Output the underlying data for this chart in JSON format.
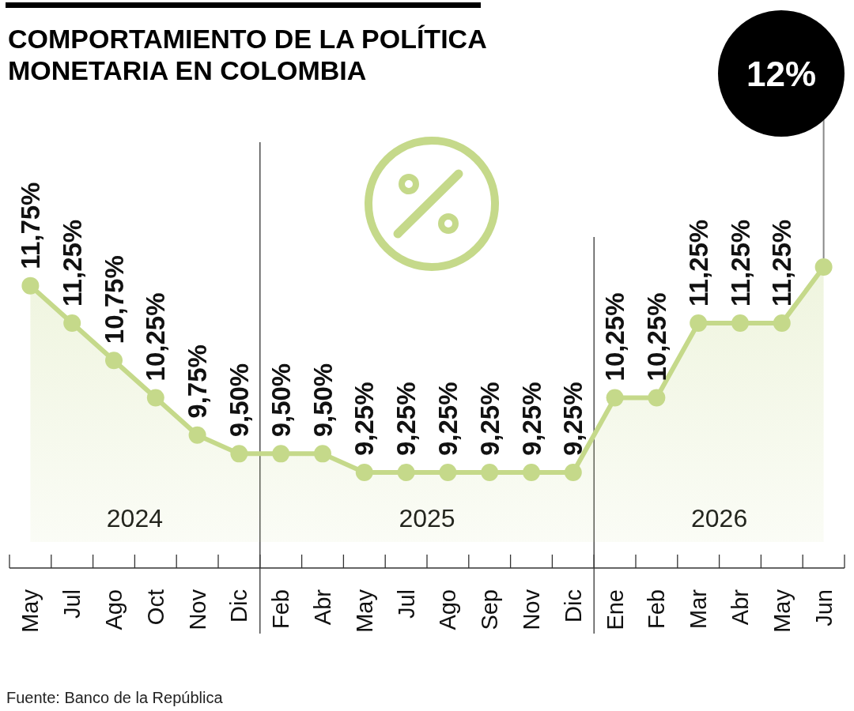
{
  "chart_data": {
    "type": "area",
    "title": "COMPORTAMIENTO DE LA POLÍTICA MONETARIA EN COLOMBIA",
    "categories": [
      "May",
      "Jul",
      "Ago",
      "Oct",
      "Nov",
      "Dic",
      "Feb",
      "Abr",
      "May",
      "Jul",
      "Ago",
      "Sep",
      "Nov",
      "Dic",
      "Ene",
      "Feb",
      "Mar",
      "Abr",
      "May",
      "Jun"
    ],
    "values": [
      11.75,
      11.25,
      10.75,
      10.25,
      9.75,
      9.5,
      9.5,
      9.5,
      9.25,
      9.25,
      9.25,
      9.25,
      9.25,
      9.25,
      10.25,
      10.25,
      11.25,
      11.25,
      11.25,
      12
    ],
    "value_labels": [
      "11,75%",
      "11,25%",
      "10,75%",
      "10,25%",
      "9,75%",
      "9,50%",
      "9,50%",
      "9,50%",
      "9,25%",
      "9,25%",
      "9,25%",
      "9,25%",
      "9,25%",
      "9,25%",
      "10,25%",
      "10,25%",
      "11,25%",
      "11,25%",
      "11,25%",
      null
    ],
    "color": "#c5d98a",
    "marker": "circle",
    "tick_labels": "x",
    "annotations": [
      "2024",
      "2025",
      "2026",
      "12%",
      "Fuente: Banco de la República"
    ]
  }
}
